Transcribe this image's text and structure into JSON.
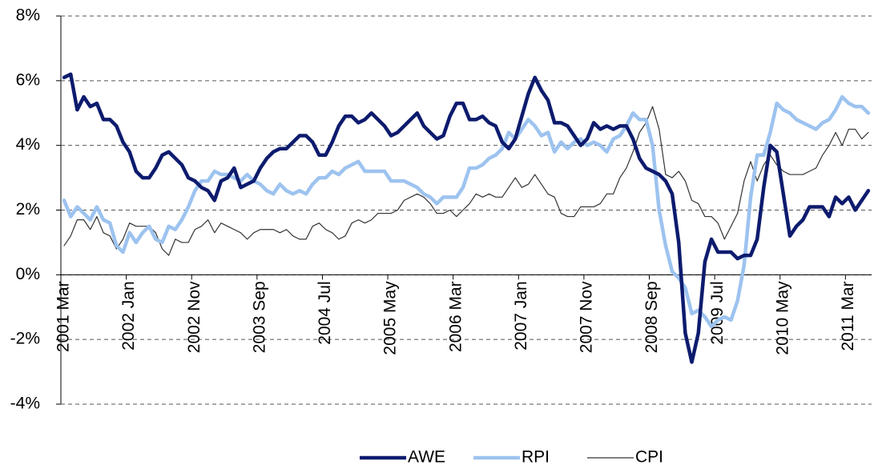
{
  "chart_data": {
    "type": "line",
    "categories": [
      "2001 Mar",
      null,
      null,
      null,
      null,
      null,
      null,
      null,
      null,
      null,
      "2002 Jan",
      null,
      null,
      null,
      null,
      null,
      null,
      null,
      null,
      null,
      "2002 Nov",
      null,
      null,
      null,
      null,
      null,
      null,
      null,
      null,
      null,
      "2003 Sep",
      null,
      null,
      null,
      null,
      null,
      null,
      null,
      null,
      null,
      "2004 Jul",
      null,
      null,
      null,
      null,
      null,
      null,
      null,
      null,
      null,
      "2005 May",
      null,
      null,
      null,
      null,
      null,
      null,
      null,
      null,
      null,
      "2006 Mar",
      null,
      null,
      null,
      null,
      null,
      null,
      null,
      null,
      null,
      "2007 Jan",
      null,
      null,
      null,
      null,
      null,
      null,
      null,
      null,
      null,
      "2007 Nov",
      null,
      null,
      null,
      null,
      null,
      null,
      null,
      null,
      null,
      "2008 Sep",
      null,
      null,
      null,
      null,
      null,
      null,
      null,
      null,
      null,
      "2009 Jul",
      null,
      null,
      null,
      null,
      null,
      null,
      null,
      null,
      null,
      "2010 May",
      null,
      null,
      null,
      null,
      null,
      null,
      null,
      null,
      null,
      "2011 Mar",
      null,
      null,
      null
    ],
    "series": [
      {
        "name": "AWE",
        "color": "#0d1b6e",
        "values": [
          6.1,
          6.2,
          5.1,
          5.5,
          5.2,
          5.3,
          4.8,
          4.8,
          4.6,
          4.1,
          3.8,
          3.2,
          3.0,
          3.0,
          3.3,
          3.7,
          3.8,
          3.6,
          3.4,
          3.0,
          2.9,
          2.7,
          2.6,
          2.3,
          2.9,
          3.0,
          3.3,
          2.7,
          2.8,
          2.9,
          3.3,
          3.6,
          3.8,
          3.9,
          3.9,
          4.1,
          4.3,
          4.3,
          4.1,
          3.7,
          3.7,
          4.1,
          4.6,
          4.9,
          4.9,
          4.7,
          4.8,
          5.0,
          4.8,
          4.6,
          4.3,
          4.4,
          4.6,
          4.8,
          5.0,
          4.6,
          4.4,
          4.2,
          4.3,
          4.9,
          5.3,
          5.3,
          4.8,
          4.8,
          4.9,
          4.7,
          4.6,
          4.1,
          3.9,
          4.2,
          4.9,
          5.6,
          6.1,
          5.7,
          5.4,
          4.7,
          4.7,
          4.6,
          4.3,
          4.0,
          4.2,
          4.7,
          4.5,
          4.6,
          4.5,
          4.6,
          4.6,
          4.2,
          3.6,
          3.3,
          3.2,
          3.1,
          2.9,
          2.5,
          1.0,
          -1.8,
          -2.7,
          -1.8,
          0.4,
          1.1,
          0.7,
          0.7,
          0.7,
          0.5,
          0.6,
          0.6,
          1.1,
          2.7,
          4.0,
          3.8,
          2.5,
          1.2,
          1.5,
          1.7,
          2.1,
          2.1,
          2.1,
          1.8,
          2.4,
          2.2,
          2.4,
          2.0,
          2.3,
          2.6
        ]
      },
      {
        "name": "RPI",
        "color": "#9dc3ef",
        "values": [
          2.3,
          1.8,
          2.1,
          1.9,
          1.7,
          2.1,
          1.7,
          1.6,
          0.9,
          0.7,
          1.3,
          1.0,
          1.3,
          1.5,
          1.1,
          1.0,
          1.5,
          1.4,
          1.7,
          2.1,
          2.6,
          2.9,
          2.9,
          3.2,
          3.1,
          3.1,
          3.0,
          2.9,
          3.1,
          2.9,
          2.8,
          2.6,
          2.5,
          2.8,
          2.6,
          2.5,
          2.6,
          2.5,
          2.8,
          3.0,
          3.0,
          3.2,
          3.1,
          3.3,
          3.4,
          3.5,
          3.2,
          3.2,
          3.2,
          3.2,
          2.9,
          2.9,
          2.9,
          2.8,
          2.7,
          2.5,
          2.4,
          2.2,
          2.4,
          2.4,
          2.4,
          2.7,
          3.3,
          3.3,
          3.4,
          3.6,
          3.7,
          3.9,
          4.4,
          4.2,
          4.5,
          4.8,
          4.6,
          4.3,
          4.4,
          3.8,
          4.1,
          3.9,
          4.1,
          4.2,
          4.0,
          4.1,
          4.0,
          3.8,
          4.2,
          4.3,
          4.6,
          5.0,
          4.8,
          4.8,
          4.0,
          2.0,
          0.9,
          0.1,
          -0.1,
          -0.4,
          -1.2,
          -1.1,
          -1.3,
          -1.6,
          -1.4,
          -1.3,
          -1.4,
          -0.8,
          0.3,
          2.4,
          3.7,
          3.7,
          4.4,
          5.3,
          5.1,
          5.0,
          4.8,
          4.7,
          4.6,
          4.5,
          4.7,
          4.8,
          5.1,
          5.5,
          5.3,
          5.2,
          5.2,
          5.0
        ]
      },
      {
        "name": "CPI",
        "color": "#333333",
        "values": [
          0.9,
          1.2,
          1.7,
          1.7,
          1.4,
          1.8,
          1.3,
          1.2,
          0.8,
          1.1,
          1.6,
          1.5,
          1.5,
          1.5,
          1.3,
          0.8,
          0.6,
          1.1,
          1.0,
          1.0,
          1.4,
          1.5,
          1.7,
          1.3,
          1.6,
          1.5,
          1.4,
          1.3,
          1.1,
          1.3,
          1.4,
          1.4,
          1.4,
          1.3,
          1.4,
          1.2,
          1.1,
          1.1,
          1.5,
          1.6,
          1.4,
          1.3,
          1.1,
          1.2,
          1.6,
          1.7,
          1.6,
          1.7,
          1.9,
          1.9,
          1.9,
          2.0,
          2.3,
          2.4,
          2.5,
          2.4,
          2.2,
          1.9,
          1.9,
          2.0,
          1.8,
          2.0,
          2.2,
          2.5,
          2.4,
          2.5,
          2.4,
          2.4,
          2.7,
          3.0,
          2.7,
          2.8,
          3.1,
          2.8,
          2.5,
          2.4,
          1.9,
          1.8,
          1.8,
          2.1,
          2.1,
          2.1,
          2.2,
          2.5,
          2.5,
          3.0,
          3.3,
          3.8,
          4.4,
          4.7,
          5.2,
          4.5,
          3.1,
          3.0,
          3.2,
          2.9,
          2.3,
          2.2,
          1.8,
          1.8,
          1.6,
          1.1,
          1.5,
          1.9,
          2.9,
          3.5,
          2.9,
          3.4,
          3.7,
          3.4,
          3.2,
          3.1,
          3.1,
          3.1,
          3.2,
          3.3,
          3.7,
          4.0,
          4.4,
          4.0,
          4.5,
          4.5,
          4.2,
          4.4
        ]
      }
    ],
    "ylim": [
      -4,
      8
    ],
    "yticks": [
      {
        "value": -4,
        "label": "-4%"
      },
      {
        "value": -2,
        "label": "-2%"
      },
      {
        "value": 0,
        "label": "0%"
      },
      {
        "value": 2,
        "label": "2%"
      },
      {
        "value": 4,
        "label": "4%"
      },
      {
        "value": 6,
        "label": "6%"
      },
      {
        "value": 8,
        "label": "8%"
      }
    ],
    "grid": true,
    "legend": "bottom"
  }
}
